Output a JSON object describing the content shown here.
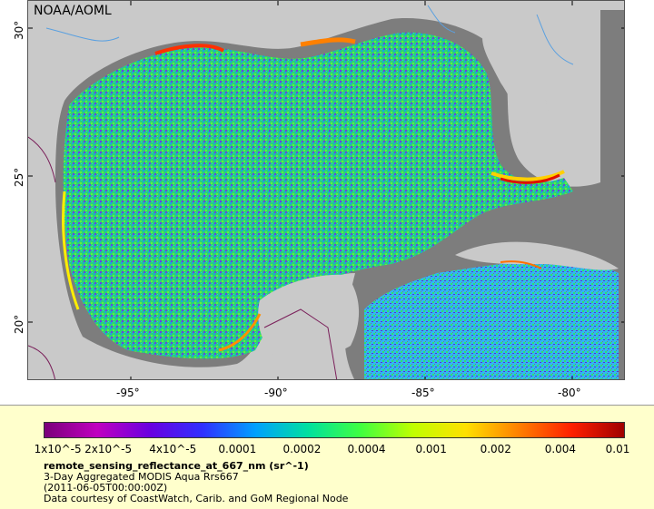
{
  "map": {
    "org_label": "NOAA/AOML",
    "lat_labels": [
      "30°",
      "25°",
      "20°"
    ],
    "lon_labels": [
      "-95°",
      "-90°",
      "-85°",
      "-80°"
    ]
  },
  "colorbar": {
    "ticks": [
      "1x10^-5",
      "2x10^-5",
      "4x10^-5",
      "0.0001",
      "0.0002",
      "0.0004",
      "0.001",
      "0.002",
      "0.004",
      "0.01"
    ],
    "colors": [
      "#7a007a",
      "#c000c0",
      "#6a00e0",
      "#3030ff",
      "#00a0ff",
      "#00e0a0",
      "#40ff40",
      "#c0ff00",
      "#ffe000",
      "#ff8000",
      "#ff2000",
      "#a00000"
    ]
  },
  "legend": {
    "variable": "remote_sensing_reflectance_at_667_nm (sr^-1)",
    "description": "3-Day Aggregated MODIS Aqua Rrs667",
    "time": "(2011-06-05T00:00:00Z)",
    "credit": "Data courtesy of CoastWatch, Carib. and GoM Regional Node"
  }
}
